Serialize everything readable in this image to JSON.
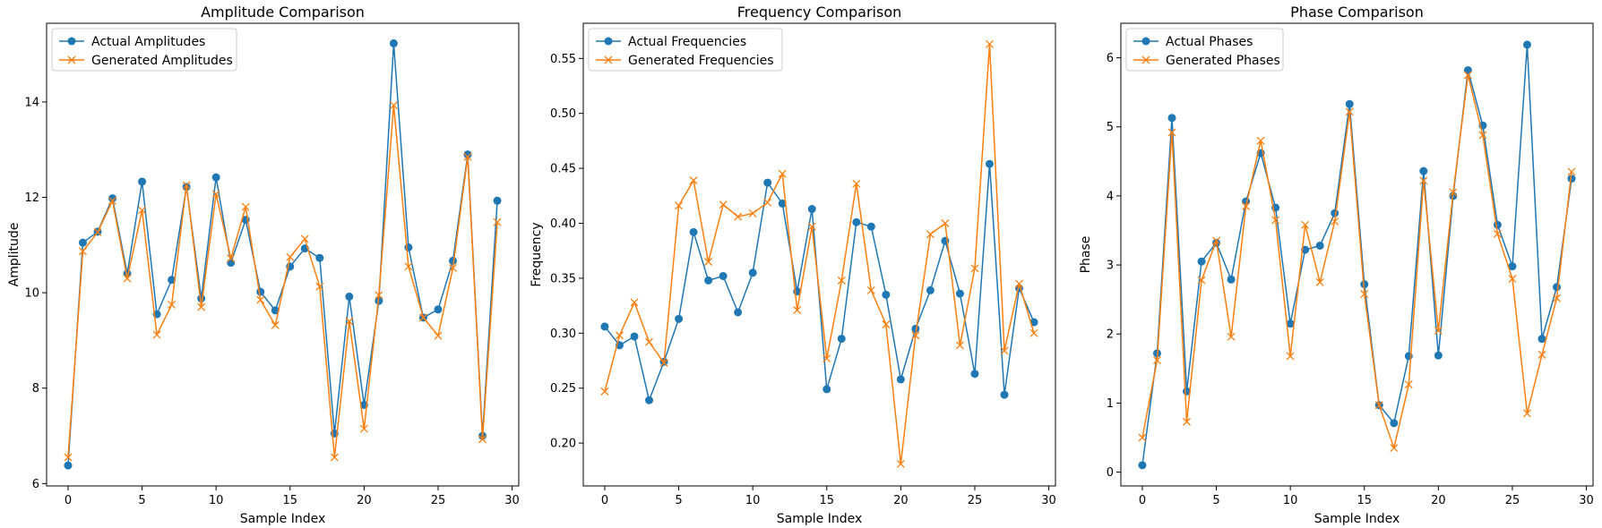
{
  "colors": {
    "actual": "#1f77b4",
    "generated": "#ff7f0e"
  },
  "chart_data": [
    {
      "type": "line",
      "title": "Amplitude Comparison",
      "xlabel": "Sample Index",
      "ylabel": "Amplitude",
      "xlim": [
        -1.45,
        30.45
      ],
      "ylim": [
        5.95,
        15.65
      ],
      "xticks": [
        0,
        5,
        10,
        15,
        20,
        25,
        30
      ],
      "yticks": [
        6,
        8,
        10,
        12,
        14
      ],
      "legend": "top-left",
      "x": [
        0,
        1,
        2,
        3,
        4,
        5,
        6,
        7,
        8,
        9,
        10,
        11,
        12,
        13,
        14,
        15,
        16,
        17,
        18,
        19,
        20,
        21,
        22,
        23,
        24,
        25,
        26,
        27,
        28,
        29
      ],
      "series": [
        {
          "name": "Actual Amplitudes",
          "marker": "o",
          "values": [
            6.38,
            11.05,
            11.28,
            11.98,
            10.4,
            12.33,
            9.55,
            10.27,
            12.22,
            9.88,
            12.42,
            10.63,
            11.53,
            10.02,
            9.63,
            10.55,
            10.93,
            10.73,
            7.05,
            9.92,
            7.65,
            9.83,
            15.23,
            10.95,
            9.48,
            9.65,
            10.67,
            12.9,
            7.0,
            11.93
          ]
        },
        {
          "name": "Generated Amplitudes",
          "marker": "x",
          "values": [
            6.55,
            10.87,
            11.27,
            11.93,
            10.3,
            11.73,
            9.12,
            9.75,
            12.25,
            9.7,
            12.07,
            10.72,
            11.8,
            9.85,
            9.32,
            10.75,
            11.13,
            10.13,
            6.55,
            9.4,
            7.15,
            9.95,
            13.93,
            10.55,
            9.48,
            9.1,
            10.52,
            12.85,
            6.93,
            11.48
          ]
        }
      ]
    },
    {
      "type": "line",
      "title": "Frequency Comparison",
      "xlabel": "Sample Index",
      "ylabel": "Frequency",
      "xlim": [
        -1.45,
        30.45
      ],
      "ylim": [
        0.161,
        0.582
      ],
      "xticks": [
        0,
        5,
        10,
        15,
        20,
        25,
        30
      ],
      "yticks": [
        0.2,
        0.25,
        0.3,
        0.35,
        0.4,
        0.45,
        0.5,
        0.55
      ],
      "yticklabels": [
        "0.20",
        "0.25",
        "0.30",
        "0.35",
        "0.40",
        "0.45",
        "0.50",
        "0.55"
      ],
      "legend": "top-left",
      "x": [
        0,
        1,
        2,
        3,
        4,
        5,
        6,
        7,
        8,
        9,
        10,
        11,
        12,
        13,
        14,
        15,
        16,
        17,
        18,
        19,
        20,
        21,
        22,
        23,
        24,
        25,
        26,
        27,
        28,
        29
      ],
      "series": [
        {
          "name": "Actual Frequencies",
          "marker": "o",
          "values": [
            0.306,
            0.289,
            0.297,
            0.239,
            0.274,
            0.313,
            0.392,
            0.348,
            0.352,
            0.319,
            0.355,
            0.437,
            0.418,
            0.338,
            0.413,
            0.249,
            0.295,
            0.401,
            0.397,
            0.335,
            0.258,
            0.304,
            0.339,
            0.384,
            0.336,
            0.263,
            0.454,
            0.244,
            0.341,
            0.31
          ]
        },
        {
          "name": "Generated Frequencies",
          "marker": "x",
          "values": [
            0.247,
            0.298,
            0.328,
            0.292,
            0.273,
            0.416,
            0.439,
            0.365,
            0.417,
            0.406,
            0.409,
            0.419,
            0.445,
            0.321,
            0.397,
            0.277,
            0.348,
            0.436,
            0.339,
            0.308,
            0.181,
            0.298,
            0.39,
            0.4,
            0.289,
            0.359,
            0.563,
            0.284,
            0.345,
            0.3
          ]
        }
      ]
    },
    {
      "type": "line",
      "title": "Phase Comparison",
      "xlabel": "Sample Index",
      "ylabel": "Phase",
      "xlim": [
        -1.45,
        30.45
      ],
      "ylim": [
        -0.2,
        6.5
      ],
      "xticks": [
        0,
        5,
        10,
        15,
        20,
        25,
        30
      ],
      "yticks": [
        0,
        1,
        2,
        3,
        4,
        5,
        6
      ],
      "legend": "top-left",
      "x": [
        0,
        1,
        2,
        3,
        4,
        5,
        6,
        7,
        8,
        9,
        10,
        11,
        12,
        13,
        14,
        15,
        16,
        17,
        18,
        19,
        20,
        21,
        22,
        23,
        24,
        25,
        26,
        27,
        28,
        29
      ],
      "series": [
        {
          "name": "Actual Phases",
          "marker": "o",
          "values": [
            0.1,
            1.72,
            5.13,
            1.17,
            3.05,
            3.32,
            2.79,
            3.92,
            4.62,
            3.83,
            2.15,
            3.22,
            3.28,
            3.75,
            5.33,
            2.72,
            0.97,
            0.71,
            1.68,
            4.36,
            1.69,
            4.0,
            5.82,
            5.02,
            3.58,
            2.98,
            6.19,
            1.93,
            2.68,
            4.25
          ]
        },
        {
          "name": "Generated Phases",
          "marker": "x",
          "values": [
            0.5,
            1.62,
            4.92,
            0.73,
            2.78,
            3.35,
            1.96,
            3.85,
            4.8,
            3.65,
            1.68,
            3.58,
            2.75,
            3.63,
            5.22,
            2.58,
            0.97,
            0.35,
            1.27,
            4.22,
            2.05,
            4.05,
            5.75,
            4.88,
            3.45,
            2.8,
            0.85,
            1.7,
            2.52,
            4.35
          ]
        }
      ]
    }
  ]
}
